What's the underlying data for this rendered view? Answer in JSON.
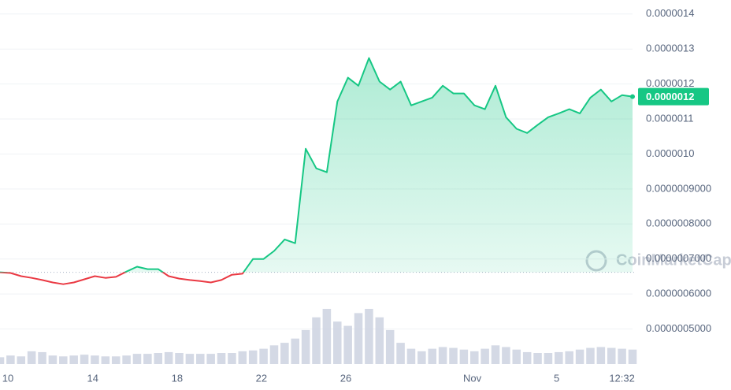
{
  "chart_data": {
    "type": "line",
    "watermark": "CoinMarketCap",
    "current_price_label": "0.0000012",
    "baseline": 6.62e-07,
    "colors": {
      "up": "#16c784",
      "down": "#ea3943",
      "volume": "#c9cfdf"
    },
    "xlim": [
      0,
      60
    ],
    "xticks": [
      {
        "value": 0.75,
        "label": "10"
      },
      {
        "value": 8.8,
        "label": "14"
      },
      {
        "value": 16.8,
        "label": "18"
      },
      {
        "value": 24.8,
        "label": "22"
      },
      {
        "value": 32.8,
        "label": "26"
      },
      {
        "value": 44.8,
        "label": "Nov"
      },
      {
        "value": 52.8,
        "label": "5"
      },
      {
        "value": 59.0,
        "label": "12:32"
      }
    ],
    "ylim": [
      4e-07,
      1.44e-06
    ],
    "yticks": [
      1.4e-06,
      1.3e-06,
      1.2e-06,
      1.1e-06,
      {
        "value": 1e-06,
        "label": "0.0000010"
      },
      {
        "value": 9e-07,
        "label": "0.0000009000"
      },
      {
        "value": 8e-07,
        "label": "0.0000008000"
      },
      {
        "value": 7e-07,
        "label": "0.0000007000"
      },
      {
        "value": 6e-07,
        "label": "0.0000006000"
      },
      {
        "value": 5e-07,
        "label": "0.0000005000"
      }
    ],
    "grid": true,
    "values": [
      6.62e-07,
      6.6e-07,
      6.51e-07,
      6.46e-07,
      6.4e-07,
      6.33e-07,
      6.28e-07,
      6.33e-07,
      6.42e-07,
      6.51e-07,
      6.46e-07,
      6.49e-07,
      6.64e-07,
      6.78e-07,
      6.71e-07,
      6.71e-07,
      6.51e-07,
      6.44e-07,
      6.4e-07,
      6.37e-07,
      6.33e-07,
      6.4e-07,
      6.55e-07,
      6.58e-07,
      7e-07,
      7e-07,
      7.23e-07,
      7.56e-07,
      7.45e-07,
      1.015e-06,
      9.59e-07,
      9.48e-07,
      1.15e-06,
      1.218e-06,
      1.195e-06,
      1.274e-06,
      1.207e-06,
      1.184e-06,
      1.207e-06,
      1.139e-06,
      1.15e-06,
      1.161e-06,
      1.195e-06,
      1.173e-06,
      1.173e-06,
      1.139e-06,
      1.128e-06,
      1.195e-06,
      1.105e-06,
      1.072e-06,
      1.06e-06,
      1.083e-06,
      1.105e-06,
      1.116e-06,
      1.128e-06,
      1.116e-06,
      1.161e-06,
      1.184e-06,
      1.15e-06,
      1.168e-06,
      1.164e-06
    ],
    "volume": [
      8,
      10,
      9,
      15,
      14,
      10,
      9,
      10,
      11,
      10,
      9,
      9,
      10,
      12,
      12,
      13,
      14,
      13,
      12,
      12,
      12,
      13,
      13,
      15,
      16,
      18,
      22,
      25,
      30,
      40,
      55,
      65,
      50,
      45,
      60,
      65,
      55,
      40,
      25,
      18,
      15,
      18,
      20,
      19,
      17,
      15,
      18,
      22,
      20,
      17,
      14,
      13,
      13,
      14,
      15,
      17,
      19,
      20,
      19,
      18,
      17
    ]
  }
}
